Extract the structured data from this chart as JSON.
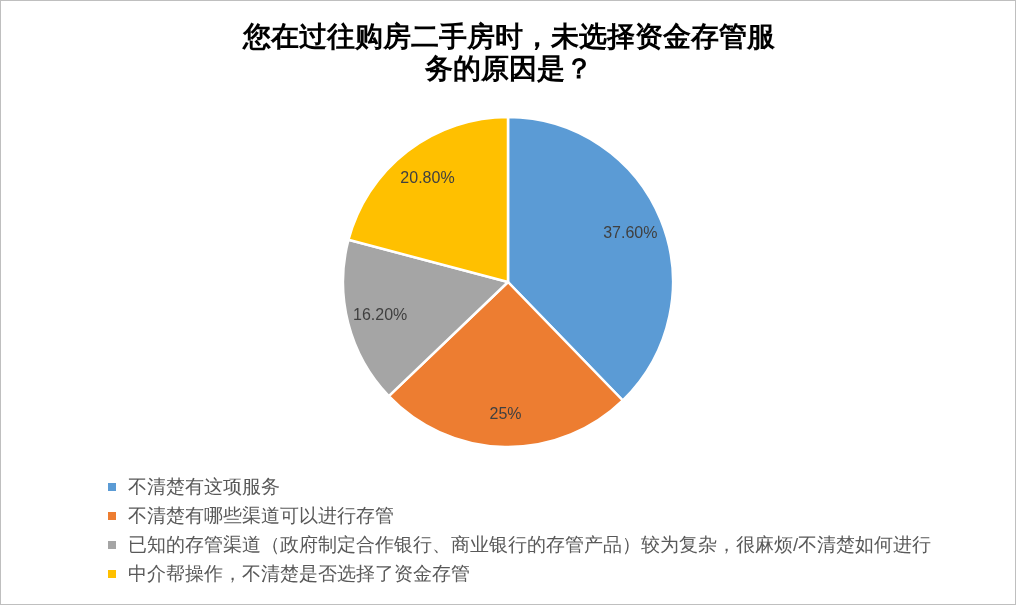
{
  "chart_data": {
    "type": "pie",
    "title": "您在过往购房二手房时，未选择资金存管服务的原因是？",
    "categories": [
      "不清楚有这项服务",
      "不清楚有哪些渠道可以进行存管",
      "已知的存管渠道（政府制定合作银行、商业银行的存管产品）较为复杂，很麻烦/不清楚如何进行",
      "中介帮操作，不清楚是否选择了资金存管"
    ],
    "values": [
      37.6,
      25,
      16.2,
      20.8
    ],
    "colors": [
      "#5b9bd5",
      "#ed7d31",
      "#a5a5a5",
      "#ffc000"
    ],
    "value_labels": [
      "37.60%",
      "25%",
      "16.20%",
      "20.80%"
    ],
    "legend": "bottom"
  }
}
